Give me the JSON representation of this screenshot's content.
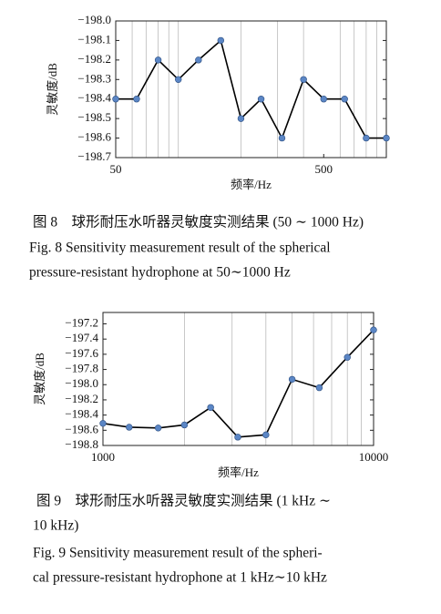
{
  "chart_data": [
    {
      "type": "line",
      "xlabel": "频率/Hz",
      "ylabel": "灵敏度/dB",
      "xscale": "log",
      "x": [
        50,
        63,
        80,
        100,
        125,
        160,
        200,
        250,
        315,
        400,
        500,
        630,
        800,
        1000
      ],
      "values": [
        -198.4,
        -198.4,
        -198.2,
        -198.3,
        -198.2,
        -198.1,
        -198.5,
        -198.4,
        -198.6,
        -198.3,
        -198.4,
        -198.4,
        -198.6,
        -198.6
      ],
      "color": "#000000",
      "marker_color": "#5b86c5",
      "xlim": [
        50,
        1000
      ],
      "xticks": [
        50,
        500
      ],
      "xgrid": [
        60,
        70,
        80,
        90,
        100,
        200,
        300,
        400,
        600,
        700,
        800,
        900
      ],
      "ylim": [
        -198.7,
        -198.0
      ],
      "yticks": [
        {
          "value": -198.0,
          "label": "−198.0"
        },
        {
          "value": -198.1,
          "label": "−198.1"
        },
        {
          "value": -198.2,
          "label": "−198.2"
        },
        {
          "value": -198.3,
          "label": "−198.3"
        },
        {
          "value": -198.4,
          "label": "−198.4"
        },
        {
          "value": -198.5,
          "label": "−198.5"
        },
        {
          "value": -198.6,
          "label": "−198.6"
        },
        {
          "value": -198.7,
          "label": "−198.7"
        }
      ],
      "caption_zh": [
        "图 8　球形耐压水听器灵敏度实测结果 (50 ∼ 1000 Hz)"
      ],
      "caption_en": [
        "Fig. 8  Sensitivity measurement result of the spherical",
        "pressure-resistant hydrophone at 50∼1000 Hz"
      ]
    },
    {
      "type": "line",
      "xlabel": "频率/Hz",
      "ylabel": "灵敏度/dB",
      "xscale": "log",
      "x": [
        1000,
        1250,
        1600,
        2000,
        2500,
        3150,
        4000,
        5000,
        6300,
        8000,
        10000
      ],
      "values": [
        -198.51,
        -198.56,
        -198.57,
        -198.53,
        -198.3,
        -198.69,
        -198.66,
        -197.93,
        -198.04,
        -197.64,
        -197.28
      ],
      "color": "#000000",
      "marker_color": "#5b86c5",
      "xlim": [
        1000,
        10000
      ],
      "xticks": [
        1000,
        10000
      ],
      "xgrid": [
        2000,
        3000,
        4000,
        5000,
        6000,
        7000,
        8000,
        9000
      ],
      "ylim": [
        -198.8,
        -197.05
      ],
      "yticks": [
        {
          "value": -197.2,
          "label": "−197.2"
        },
        {
          "value": -197.4,
          "label": "−197.4"
        },
        {
          "value": -197.6,
          "label": "−197.6"
        },
        {
          "value": -197.8,
          "label": "−197.8"
        },
        {
          "value": -198.0,
          "label": "−198.0"
        },
        {
          "value": -198.2,
          "label": "−198.2"
        },
        {
          "value": -198.4,
          "label": "−198.4"
        },
        {
          "value": -198.6,
          "label": "−198.6"
        },
        {
          "value": -198.8,
          "label": "−198.8"
        }
      ],
      "caption_zh": [
        "图 9　球形耐压水听器灵敏度实测结果 (1 kHz ∼",
        "10 kHz)"
      ],
      "caption_en": [
        "Fig. 9  Sensitivity measurement result of the spheri-",
        "cal pressure-resistant hydrophone at 1 kHz∼10 kHz"
      ]
    }
  ]
}
